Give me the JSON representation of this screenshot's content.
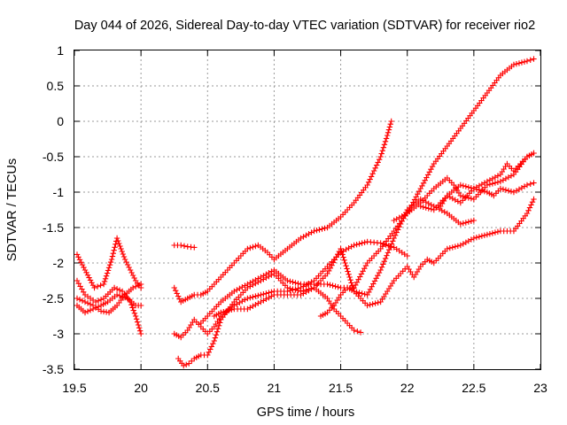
{
  "chart_data": {
    "type": "scatter",
    "title": "Day 044 of 2026, Sidereal Day-to-day VTEC variation (SDTVAR) for receiver rio2",
    "xlabel": "GPS time / hours",
    "ylabel": "SDTVAR / TECUs",
    "xlim": [
      19.5,
      23
    ],
    "ylim": [
      -3.5,
      1
    ],
    "xticks": [
      "19.5",
      "20",
      "20.5",
      "21",
      "21.5",
      "22",
      "22.5",
      "23"
    ],
    "yticks": [
      "1",
      "0.5",
      "0",
      "-0.5",
      "-1",
      "-1.5",
      "-2",
      "-2.5",
      "-3",
      "-3.5"
    ],
    "grid": true,
    "marker": "+",
    "color": "#ff0000",
    "series": [
      {
        "x": [
          19.52,
          19.58,
          19.65,
          19.72,
          19.78,
          19.82,
          19.88,
          19.92,
          19.96,
          20.0
        ],
        "y": [
          -1.88,
          -2.1,
          -2.35,
          -2.3,
          -1.95,
          -1.65,
          -1.95,
          -2.1,
          -2.25,
          -2.35
        ]
      },
      {
        "x": [
          19.52,
          19.58,
          19.66,
          19.72,
          19.8,
          19.86,
          19.92,
          19.96,
          20.0
        ],
        "y": [
          -2.25,
          -2.45,
          -2.55,
          -2.5,
          -2.35,
          -2.4,
          -2.55,
          -2.75,
          -3.0
        ]
      },
      {
        "x": [
          19.52,
          19.58,
          19.64,
          19.7,
          19.75,
          19.82,
          19.9,
          19.96,
          20.0
        ],
        "y": [
          -2.6,
          -2.7,
          -2.65,
          -2.6,
          -2.55,
          -2.45,
          -2.5,
          -2.6,
          -2.6
        ]
      },
      {
        "x": [
          19.52,
          19.58,
          19.64,
          19.7,
          19.76,
          19.82,
          19.88,
          19.94,
          20.0
        ],
        "y": [
          -2.5,
          -2.55,
          -2.6,
          -2.68,
          -2.7,
          -2.6,
          -2.45,
          -2.35,
          -2.3
        ]
      },
      {
        "x": [
          20.25,
          20.3,
          20.35,
          20.4
        ],
        "y": [
          -1.75,
          -1.75,
          -1.77,
          -1.78
        ]
      },
      {
        "x": [
          20.25,
          20.3,
          20.35,
          20.4,
          20.45,
          20.5,
          20.6,
          20.7,
          20.8,
          20.88,
          20.95,
          21.0,
          21.1,
          21.2,
          21.3,
          21.4,
          21.5,
          21.6,
          21.7,
          21.8,
          21.85,
          21.88
        ],
        "y": [
          -2.35,
          -2.55,
          -2.5,
          -2.45,
          -2.45,
          -2.4,
          -2.2,
          -2.0,
          -1.8,
          -1.75,
          -1.85,
          -1.95,
          -1.8,
          -1.65,
          -1.55,
          -1.5,
          -1.35,
          -1.15,
          -0.9,
          -0.5,
          -0.2,
          0.0
        ]
      },
      {
        "x": [
          20.25,
          20.3,
          20.35,
          20.4,
          20.45,
          20.5,
          20.55,
          20.6,
          20.7,
          20.8,
          20.9,
          21.0,
          21.1,
          21.2,
          21.3,
          21.4,
          21.5,
          21.6,
          21.7,
          21.8,
          21.9,
          22.0
        ],
        "y": [
          -3.0,
          -3.05,
          -2.95,
          -2.8,
          -2.9,
          -3.0,
          -2.9,
          -2.75,
          -2.6,
          -2.5,
          -2.45,
          -2.4,
          -2.4,
          -2.35,
          -2.25,
          -2.05,
          -1.85,
          -1.75,
          -1.7,
          -1.72,
          -1.78,
          -1.9
        ]
      },
      {
        "x": [
          20.28,
          20.32,
          20.36,
          20.4,
          20.45,
          20.5,
          20.55,
          20.6,
          20.7,
          20.8,
          20.9,
          21.0,
          21.1,
          21.2,
          21.3,
          21.4,
          21.45,
          21.5,
          21.55,
          21.6,
          21.65
        ],
        "y": [
          -3.35,
          -3.45,
          -3.42,
          -3.35,
          -3.3,
          -3.3,
          -3.1,
          -2.8,
          -2.55,
          -2.35,
          -2.25,
          -2.15,
          -2.35,
          -2.4,
          -2.35,
          -2.5,
          -2.65,
          -2.75,
          -2.85,
          -2.95,
          -2.98
        ]
      },
      {
        "x": [
          20.45,
          20.5,
          20.6,
          20.7,
          20.8,
          20.9,
          21.0,
          21.1,
          21.2,
          21.3,
          21.4,
          21.5,
          21.6,
          21.7,
          21.8,
          21.9,
          22.0,
          22.1,
          22.2,
          22.3,
          22.4,
          22.5,
          22.6,
          22.7,
          22.8,
          22.9,
          22.95
        ],
        "y": [
          -2.85,
          -2.75,
          -2.55,
          -2.4,
          -2.3,
          -2.2,
          -2.1,
          -2.25,
          -2.3,
          -2.3,
          -2.3,
          -2.35,
          -2.35,
          -2.0,
          -1.8,
          -1.55,
          -1.3,
          -0.95,
          -0.6,
          -0.35,
          -0.1,
          0.15,
          0.4,
          0.65,
          0.8,
          0.85,
          0.88
        ]
      },
      {
        "x": [
          20.55,
          20.6,
          20.7,
          20.8,
          20.9,
          21.0,
          21.1,
          21.2,
          21.3,
          21.4,
          21.5,
          21.6,
          21.7,
          21.8,
          21.9,
          22.0,
          22.1,
          22.2,
          22.3,
          22.4,
          22.5
        ],
        "y": [
          -2.75,
          -2.7,
          -2.65,
          -2.65,
          -2.55,
          -2.45,
          -2.45,
          -2.45,
          -2.35,
          -2.15,
          -1.8,
          -2.4,
          -2.45,
          -2.1,
          -1.65,
          -1.25,
          -1.1,
          -1.2,
          -1.3,
          -1.45,
          -1.4
        ]
      },
      {
        "x": [
          21.35,
          21.4,
          21.45,
          21.5,
          21.55,
          21.6,
          21.7,
          21.8,
          21.9,
          22.0,
          22.05,
          22.1,
          22.15,
          22.2,
          22.3,
          22.4,
          22.5,
          22.6,
          22.7,
          22.8,
          22.9,
          22.95
        ],
        "y": [
          -2.75,
          -2.7,
          -2.6,
          -2.45,
          -2.35,
          -2.4,
          -2.6,
          -2.55,
          -2.25,
          -2.05,
          -2.2,
          -2.05,
          -1.95,
          -2.0,
          -1.8,
          -1.75,
          -1.65,
          -1.6,
          -1.55,
          -1.55,
          -1.3,
          -1.1
        ]
      },
      {
        "x": [
          21.9,
          22.0,
          22.1,
          22.2,
          22.3,
          22.35,
          22.4,
          22.5,
          22.6,
          22.7,
          22.8,
          22.9,
          22.95
        ],
        "y": [
          -1.4,
          -1.3,
          -1.15,
          -0.95,
          -0.8,
          -0.9,
          -1.05,
          -1.1,
          -0.9,
          -0.85,
          -0.75,
          -0.5,
          -0.45
        ]
      },
      {
        "x": [
          22.1,
          22.2,
          22.3,
          22.4,
          22.5,
          22.6,
          22.7,
          22.75,
          22.8,
          22.9,
          22.95
        ],
        "y": [
          -1.2,
          -1.25,
          -1.05,
          -1.15,
          -0.95,
          -0.85,
          -0.75,
          -0.6,
          -0.7,
          -0.5,
          -0.45
        ]
      },
      {
        "x": [
          22.25,
          22.3,
          22.4,
          22.5,
          22.6,
          22.65,
          22.7,
          22.8,
          22.9,
          22.95
        ],
        "y": [
          -1.2,
          -1.05,
          -0.9,
          -0.95,
          -1.0,
          -1.05,
          -0.95,
          -1.0,
          -0.9,
          -0.87
        ]
      }
    ]
  }
}
